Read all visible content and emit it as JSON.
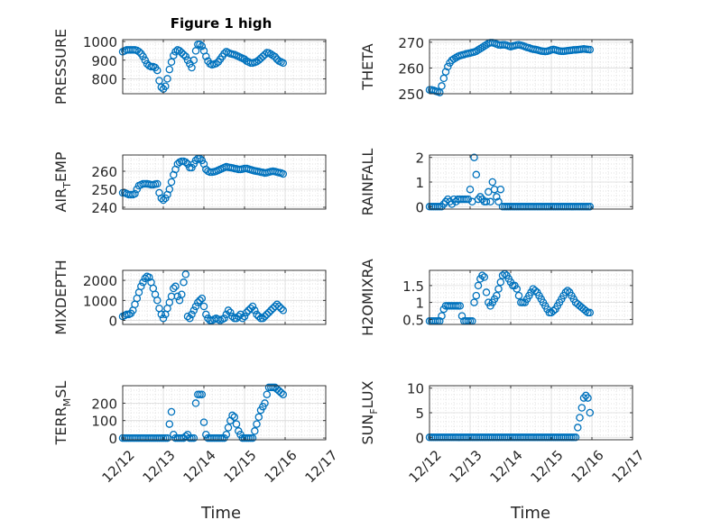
{
  "figure": {
    "title": "Figure 1 high",
    "xlabel": "Time",
    "x_ticks": [
      "12/12",
      "12/13",
      "12/14",
      "12/15",
      "12/16",
      "12/17"
    ],
    "marker_color": "#0072BD",
    "grid": true,
    "marker": "circle"
  },
  "chart_data": [
    {
      "type": "scatter",
      "ylabel": "PRESSURE",
      "ylabel_sub": "",
      "xlim": [
        0,
        5
      ],
      "ylim": [
        720,
        1010
      ],
      "yticks": [
        800,
        900,
        1000
      ],
      "x": [
        0,
        0.05,
        0.1,
        0.15,
        0.2,
        0.25,
        0.3,
        0.35,
        0.4,
        0.45,
        0.5,
        0.55,
        0.6,
        0.65,
        0.7,
        0.75,
        0.8,
        0.85,
        0.9,
        0.95,
        1,
        1.05,
        1.1,
        1.15,
        1.2,
        1.25,
        1.3,
        1.35,
        1.4,
        1.45,
        1.5,
        1.55,
        1.6,
        1.65,
        1.7,
        1.75,
        1.8,
        1.85,
        1.9,
        1.95,
        2,
        2.05,
        2.1,
        2.15,
        2.2,
        2.25,
        2.3,
        2.35,
        2.4,
        2.45,
        2.5,
        2.55,
        2.6,
        2.65,
        2.7,
        2.75,
        2.8,
        2.85,
        2.9,
        2.95,
        3,
        3.05,
        3.1,
        3.15,
        3.2,
        3.25,
        3.3,
        3.35,
        3.4,
        3.45,
        3.5,
        3.55,
        3.6,
        3.65,
        3.7,
        3.75,
        3.8,
        3.85,
        3.9,
        3.95
      ],
      "y": [
        945,
        950,
        955,
        955,
        955,
        955,
        955,
        952,
        945,
        935,
        920,
        900,
        880,
        870,
        865,
        865,
        860,
        845,
        790,
        755,
        745,
        760,
        800,
        850,
        890,
        925,
        945,
        955,
        950,
        940,
        930,
        920,
        900,
        880,
        860,
        900,
        950,
        985,
        985,
        975,
        950,
        920,
        895,
        880,
        875,
        878,
        882,
        890,
        905,
        920,
        935,
        945,
        940,
        935,
        932,
        930,
        925,
        920,
        915,
        910,
        905,
        895,
        890,
        885,
        885,
        888,
        892,
        900,
        910,
        920,
        930,
        940,
        938,
        932,
        925,
        918,
        905,
        895,
        890,
        885
      ]
    },
    {
      "type": "scatter",
      "ylabel": "THETA",
      "ylabel_sub": "",
      "xlim": [
        0,
        5
      ],
      "ylim": [
        250,
        271
      ],
      "yticks": [
        250,
        260,
        270
      ],
      "x": [
        0,
        0.05,
        0.1,
        0.15,
        0.2,
        0.25,
        0.3,
        0.35,
        0.4,
        0.45,
        0.5,
        0.55,
        0.6,
        0.65,
        0.7,
        0.75,
        0.8,
        0.85,
        0.9,
        0.95,
        1,
        1.05,
        1.1,
        1.15,
        1.2,
        1.25,
        1.3,
        1.35,
        1.4,
        1.45,
        1.5,
        1.55,
        1.6,
        1.65,
        1.7,
        1.75,
        1.8,
        1.85,
        1.9,
        1.95,
        2,
        2.05,
        2.1,
        2.15,
        2.2,
        2.25,
        2.3,
        2.35,
        2.4,
        2.45,
        2.5,
        2.55,
        2.6,
        2.65,
        2.7,
        2.75,
        2.8,
        2.85,
        2.9,
        2.95,
        3,
        3.05,
        3.1,
        3.15,
        3.2,
        3.25,
        3.3,
        3.35,
        3.4,
        3.45,
        3.5,
        3.55,
        3.6,
        3.65,
        3.7,
        3.75,
        3.8,
        3.85,
        3.9,
        3.95
      ],
      "y": [
        251.5,
        251.5,
        251.3,
        251,
        250.8,
        250.5,
        253,
        256,
        258.5,
        260.5,
        262,
        263,
        263.5,
        264,
        264.5,
        264.8,
        265,
        265.2,
        265.5,
        265.6,
        265.8,
        266,
        266.2,
        266.5,
        267,
        267.5,
        268,
        268.5,
        269,
        269.5,
        269.8,
        269.8,
        269.6,
        269.3,
        269,
        268.9,
        269,
        269,
        268.8,
        268.5,
        268.3,
        268.5,
        268.7,
        268.9,
        269,
        268.8,
        268.6,
        268.3,
        268,
        267.8,
        267.5,
        267.3,
        267.2,
        267,
        266.8,
        266.6,
        266.5,
        266.4,
        266.5,
        266.7,
        267,
        267.2,
        267,
        266.8,
        266.6,
        266.5,
        266.5,
        266.6,
        266.7,
        266.8,
        266.9,
        267,
        267,
        267.1,
        267.2,
        267.3,
        267.4,
        267.3,
        267.2,
        267.1
      ]
    },
    {
      "type": "scatter",
      "ylabel": "AIR",
      "ylabel_sub": "T",
      "ylabel_suffix": "EMP",
      "xlim": [
        0,
        5
      ],
      "ylim": [
        239,
        269
      ],
      "yticks": [
        240,
        250,
        260
      ],
      "x": [
        0,
        0.05,
        0.1,
        0.15,
        0.2,
        0.25,
        0.3,
        0.35,
        0.4,
        0.45,
        0.5,
        0.55,
        0.6,
        0.65,
        0.7,
        0.75,
        0.8,
        0.85,
        0.9,
        0.95,
        1,
        1.05,
        1.1,
        1.15,
        1.2,
        1.25,
        1.3,
        1.35,
        1.4,
        1.45,
        1.5,
        1.55,
        1.6,
        1.65,
        1.7,
        1.75,
        1.8,
        1.85,
        1.9,
        1.95,
        2,
        2.05,
        2.1,
        2.15,
        2.2,
        2.25,
        2.3,
        2.35,
        2.4,
        2.45,
        2.5,
        2.55,
        2.6,
        2.65,
        2.7,
        2.75,
        2.8,
        2.85,
        2.9,
        2.95,
        3,
        3.05,
        3.1,
        3.15,
        3.2,
        3.25,
        3.3,
        3.35,
        3.4,
        3.45,
        3.5,
        3.55,
        3.6,
        3.65,
        3.7,
        3.75,
        3.8,
        3.85,
        3.9,
        3.95
      ],
      "y": [
        248,
        248,
        247.5,
        247,
        247,
        247,
        247.5,
        250,
        252,
        252.5,
        253,
        253,
        253,
        252.8,
        252.5,
        252.5,
        252.8,
        253,
        248,
        245,
        244,
        245,
        247,
        250,
        254,
        258,
        261,
        264,
        265,
        265.5,
        265.5,
        265,
        264,
        262,
        262,
        264,
        266,
        267,
        267,
        266,
        264,
        261,
        260,
        259.5,
        259.5,
        259.7,
        260,
        260.5,
        261,
        261.5,
        262,
        262.5,
        262.2,
        262,
        261.8,
        261.5,
        261.3,
        261,
        261,
        261.2,
        261.5,
        261.5,
        261.2,
        260.8,
        260.5,
        260.2,
        260,
        259.8,
        259.5,
        259.3,
        259,
        259.2,
        259.5,
        259.8,
        260,
        259.8,
        259.5,
        259.2,
        259,
        258.5
      ]
    },
    {
      "type": "scatter",
      "ylabel": "RAINFALL",
      "ylabel_sub": "",
      "xlim": [
        0,
        5
      ],
      "ylim": [
        -0.1,
        2.1
      ],
      "yticks": [
        0,
        1,
        2
      ],
      "x": [
        0,
        0.05,
        0.1,
        0.15,
        0.2,
        0.25,
        0.3,
        0.35,
        0.4,
        0.45,
        0.5,
        0.55,
        0.6,
        0.65,
        0.7,
        0.75,
        0.8,
        0.85,
        0.9,
        0.95,
        1,
        1.05,
        1.1,
        1.15,
        1.2,
        1.25,
        1.3,
        1.35,
        1.4,
        1.45,
        1.5,
        1.55,
        1.6,
        1.65,
        1.7,
        1.75,
        1.8,
        1.85,
        1.9,
        1.95,
        2,
        2.05,
        2.1,
        2.15,
        2.2,
        2.25,
        2.3,
        2.35,
        2.4,
        2.45,
        2.5,
        2.55,
        2.6,
        2.65,
        2.7,
        2.75,
        2.8,
        2.85,
        2.9,
        2.95,
        3,
        3.05,
        3.1,
        3.15,
        3.2,
        3.25,
        3.3,
        3.35,
        3.4,
        3.45,
        3.5,
        3.55,
        3.6,
        3.65,
        3.7,
        3.75,
        3.8,
        3.85,
        3.9,
        3.95
      ],
      "y": [
        0,
        0,
        0,
        0,
        0,
        0,
        0,
        0.1,
        0.2,
        0.3,
        0.2,
        0.1,
        0.3,
        0.2,
        0.3,
        0.3,
        0.3,
        0.3,
        0.3,
        0.3,
        0.7,
        0.2,
        2.0,
        1.3,
        0.3,
        0.4,
        0.3,
        0.2,
        0.2,
        0.6,
        0.2,
        1.0,
        0.7,
        0.4,
        0.2,
        0.7,
        0,
        0,
        0,
        0,
        0,
        0,
        0,
        0,
        0,
        0,
        0,
        0,
        0,
        0,
        0,
        0,
        0,
        0,
        0,
        0,
        0,
        0,
        0,
        0,
        0,
        0,
        0,
        0,
        0,
        0,
        0,
        0,
        0,
        0,
        0,
        0,
        0,
        0,
        0,
        0,
        0,
        0,
        0,
        0
      ]
    },
    {
      "type": "scatter",
      "ylabel": "MIXDEPTH",
      "ylabel_sub": "",
      "xlim": [
        0,
        5
      ],
      "ylim": [
        -200,
        2500
      ],
      "yticks": [
        0,
        1000,
        2000
      ],
      "x": [
        0,
        0.05,
        0.1,
        0.15,
        0.2,
        0.25,
        0.3,
        0.35,
        0.4,
        0.45,
        0.5,
        0.55,
        0.6,
        0.65,
        0.7,
        0.75,
        0.8,
        0.85,
        0.9,
        0.95,
        1,
        1.05,
        1.1,
        1.15,
        1.2,
        1.25,
        1.3,
        1.35,
        1.4,
        1.45,
        1.5,
        1.55,
        1.6,
        1.65,
        1.7,
        1.75,
        1.8,
        1.85,
        1.9,
        1.95,
        2,
        2.05,
        2.1,
        2.15,
        2.2,
        2.25,
        2.3,
        2.35,
        2.4,
        2.45,
        2.5,
        2.55,
        2.6,
        2.65,
        2.7,
        2.75,
        2.8,
        2.85,
        2.9,
        2.95,
        3,
        3.05,
        3.1,
        3.15,
        3.2,
        3.25,
        3.3,
        3.35,
        3.4,
        3.45,
        3.5,
        3.55,
        3.6,
        3.65,
        3.7,
        3.75,
        3.8,
        3.85,
        3.9,
        3.95
      ],
      "y": [
        200,
        250,
        300,
        300,
        350,
        500,
        800,
        1100,
        1400,
        1700,
        1900,
        2100,
        2200,
        2150,
        1900,
        1600,
        1300,
        1000,
        600,
        300,
        100,
        300,
        600,
        900,
        1200,
        1600,
        1700,
        1200,
        1000,
        1300,
        1900,
        2300,
        200,
        100,
        300,
        500,
        700,
        900,
        1000,
        1100,
        700,
        300,
        100,
        0,
        0,
        50,
        100,
        50,
        0,
        50,
        100,
        300,
        500,
        400,
        200,
        100,
        100,
        200,
        300,
        100,
        200,
        400,
        500,
        600,
        700,
        500,
        300,
        200,
        100,
        100,
        200,
        300,
        400,
        500,
        600,
        700,
        800,
        700,
        600,
        500
      ]
    },
    {
      "type": "scatter",
      "ylabel": "H2OMIXRA",
      "ylabel_sub": "",
      "xlim": [
        0,
        5
      ],
      "ylim": [
        0.35,
        1.95
      ],
      "yticks": [
        0.5,
        1,
        1.5
      ],
      "x": [
        0,
        0.05,
        0.1,
        0.15,
        0.2,
        0.25,
        0.3,
        0.35,
        0.4,
        0.45,
        0.5,
        0.55,
        0.6,
        0.65,
        0.7,
        0.75,
        0.8,
        0.85,
        0.9,
        0.95,
        1,
        1.05,
        1.1,
        1.15,
        1.2,
        1.25,
        1.3,
        1.35,
        1.4,
        1.45,
        1.5,
        1.55,
        1.6,
        1.65,
        1.7,
        1.75,
        1.8,
        1.85,
        1.9,
        1.95,
        2,
        2.05,
        2.1,
        2.15,
        2.2,
        2.25,
        2.3,
        2.35,
        2.4,
        2.45,
        2.5,
        2.55,
        2.6,
        2.65,
        2.7,
        2.75,
        2.8,
        2.85,
        2.9,
        2.95,
        3,
        3.05,
        3.1,
        3.15,
        3.2,
        3.25,
        3.3,
        3.35,
        3.4,
        3.45,
        3.5,
        3.55,
        3.6,
        3.65,
        3.7,
        3.75,
        3.8,
        3.85,
        3.9,
        3.95
      ],
      "y": [
        0.45,
        0.45,
        0.45,
        0.45,
        0.45,
        0.45,
        0.6,
        0.8,
        0.9,
        0.9,
        0.9,
        0.9,
        0.9,
        0.9,
        0.9,
        0.9,
        0.6,
        0.45,
        0.45,
        0.45,
        0.45,
        0.45,
        1.0,
        1.2,
        1.5,
        1.7,
        1.8,
        1.75,
        1.3,
        1.0,
        0.9,
        1.0,
        1.1,
        1.2,
        1.4,
        1.6,
        1.8,
        1.85,
        1.8,
        1.7,
        1.6,
        1.5,
        1.5,
        1.4,
        1.2,
        1.0,
        1.0,
        1.0,
        1.1,
        1.2,
        1.3,
        1.4,
        1.35,
        1.3,
        1.2,
        1.1,
        1.0,
        0.9,
        0.8,
        0.7,
        0.7,
        0.75,
        0.8,
        0.9,
        1.0,
        1.1,
        1.2,
        1.3,
        1.35,
        1.3,
        1.2,
        1.1,
        1.0,
        0.95,
        0.9,
        0.85,
        0.8,
        0.75,
        0.7,
        0.7
      ]
    },
    {
      "type": "scatter",
      "ylabel": "TERR",
      "ylabel_sub": "M",
      "ylabel_suffix": "SL",
      "xlim": [
        0,
        5
      ],
      "ylim": [
        -10,
        300
      ],
      "yticks": [
        0,
        100,
        200
      ],
      "x": [
        0,
        0.05,
        0.1,
        0.15,
        0.2,
        0.25,
        0.3,
        0.35,
        0.4,
        0.45,
        0.5,
        0.55,
        0.6,
        0.65,
        0.7,
        0.75,
        0.8,
        0.85,
        0.9,
        0.95,
        1,
        1.05,
        1.1,
        1.15,
        1.2,
        1.25,
        1.3,
        1.35,
        1.4,
        1.45,
        1.5,
        1.55,
        1.6,
        1.65,
        1.7,
        1.75,
        1.8,
        1.85,
        1.9,
        1.95,
        2,
        2.05,
        2.1,
        2.15,
        2.2,
        2.25,
        2.3,
        2.35,
        2.4,
        2.45,
        2.5,
        2.55,
        2.6,
        2.65,
        2.7,
        2.75,
        2.8,
        2.85,
        2.9,
        2.95,
        3,
        3.05,
        3.1,
        3.15,
        3.2,
        3.25,
        3.3,
        3.35,
        3.4,
        3.45,
        3.5,
        3.55,
        3.6,
        3.65,
        3.7,
        3.75,
        3.8,
        3.85,
        3.9,
        3.95
      ],
      "y": [
        0,
        0,
        0,
        0,
        0,
        0,
        0,
        0,
        0,
        0,
        0,
        0,
        0,
        0,
        0,
        0,
        0,
        0,
        0,
        0,
        0,
        0,
        0,
        80,
        150,
        20,
        0,
        0,
        0,
        0,
        0,
        10,
        20,
        0,
        0,
        0,
        200,
        250,
        250,
        250,
        90,
        20,
        0,
        0,
        0,
        0,
        0,
        0,
        0,
        0,
        0,
        20,
        60,
        100,
        130,
        120,
        80,
        40,
        20,
        0,
        0,
        0,
        0,
        0,
        0,
        40,
        80,
        120,
        160,
        180,
        200,
        250,
        290,
        290,
        290,
        290,
        280,
        270,
        260,
        250
      ]
    },
    {
      "type": "scatter",
      "ylabel": "SUN",
      "ylabel_sub": "F",
      "ylabel_suffix": "LUX",
      "xlim": [
        0,
        5
      ],
      "ylim": [
        -0.5,
        10.5
      ],
      "yticks": [
        0,
        5,
        10
      ],
      "x": [
        0,
        0.05,
        0.1,
        0.15,
        0.2,
        0.25,
        0.3,
        0.35,
        0.4,
        0.45,
        0.5,
        0.55,
        0.6,
        0.65,
        0.7,
        0.75,
        0.8,
        0.85,
        0.9,
        0.95,
        1,
        1.05,
        1.1,
        1.15,
        1.2,
        1.25,
        1.3,
        1.35,
        1.4,
        1.45,
        1.5,
        1.55,
        1.6,
        1.65,
        1.7,
        1.75,
        1.8,
        1.85,
        1.9,
        1.95,
        2,
        2.05,
        2.1,
        2.15,
        2.2,
        2.25,
        2.3,
        2.35,
        2.4,
        2.45,
        2.5,
        2.55,
        2.6,
        2.65,
        2.7,
        2.75,
        2.8,
        2.85,
        2.9,
        2.95,
        3,
        3.05,
        3.1,
        3.15,
        3.2,
        3.25,
        3.3,
        3.35,
        3.4,
        3.45,
        3.5,
        3.55,
        3.6,
        3.65,
        3.7,
        3.75,
        3.8,
        3.85,
        3.9,
        3.95
      ],
      "y": [
        0,
        0,
        0,
        0,
        0,
        0,
        0,
        0,
        0,
        0,
        0,
        0,
        0,
        0,
        0,
        0,
        0,
        0,
        0,
        0,
        0,
        0,
        0,
        0,
        0,
        0,
        0,
        0,
        0,
        0,
        0,
        0,
        0,
        0,
        0,
        0,
        0,
        0,
        0,
        0,
        0,
        0,
        0,
        0,
        0,
        0,
        0,
        0,
        0,
        0,
        0,
        0,
        0,
        0,
        0,
        0,
        0,
        0,
        0,
        0,
        0,
        0,
        0,
        0,
        0,
        0,
        0,
        0,
        0,
        0,
        0,
        0,
        0,
        2,
        4,
        6,
        8,
        8.5,
        8,
        5
      ]
    }
  ]
}
